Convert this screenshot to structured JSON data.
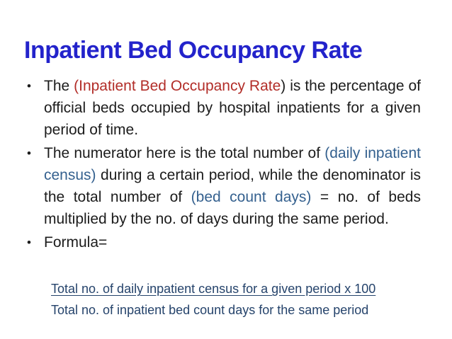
{
  "slide": {
    "title": "Inpatient Bed Occupancy Rate",
    "colors": {
      "background": "#ffffff",
      "title": "#2323cb",
      "body": "#1c1c1c",
      "red": "#b22d28",
      "blue": "#35618f",
      "formula": "#25436b"
    },
    "bullets": [
      {
        "segments": [
          {
            "text": "The ",
            "color": "body"
          },
          {
            "text": "(Inpatient Bed Occupancy Rate",
            "color": "red"
          },
          {
            "text": ") is the percentage of official beds occupied by hospital inpatients for a given period of time.",
            "color": "body"
          }
        ]
      },
      {
        "segments": [
          {
            "text": "The numerator here is the total number of ",
            "color": "body"
          },
          {
            "text": "(daily inpatient census)",
            "color": "blue"
          },
          {
            "text": " during a certain period, while the denominator is the total number of ",
            "color": "body"
          },
          {
            "text": "(bed count days)",
            "color": "blue"
          },
          {
            "text": " = no. of beds multiplied by the no. of days during the same period.",
            "color": "body"
          }
        ]
      },
      {
        "segments": [
          {
            "text": "Formula=",
            "color": "body"
          }
        ]
      }
    ],
    "bullet_marker": "•",
    "formula": {
      "numerator": "Total no. of daily inpatient census for a given period x 100",
      "denominator": "Total no. of inpatient bed count days for the same period"
    }
  }
}
